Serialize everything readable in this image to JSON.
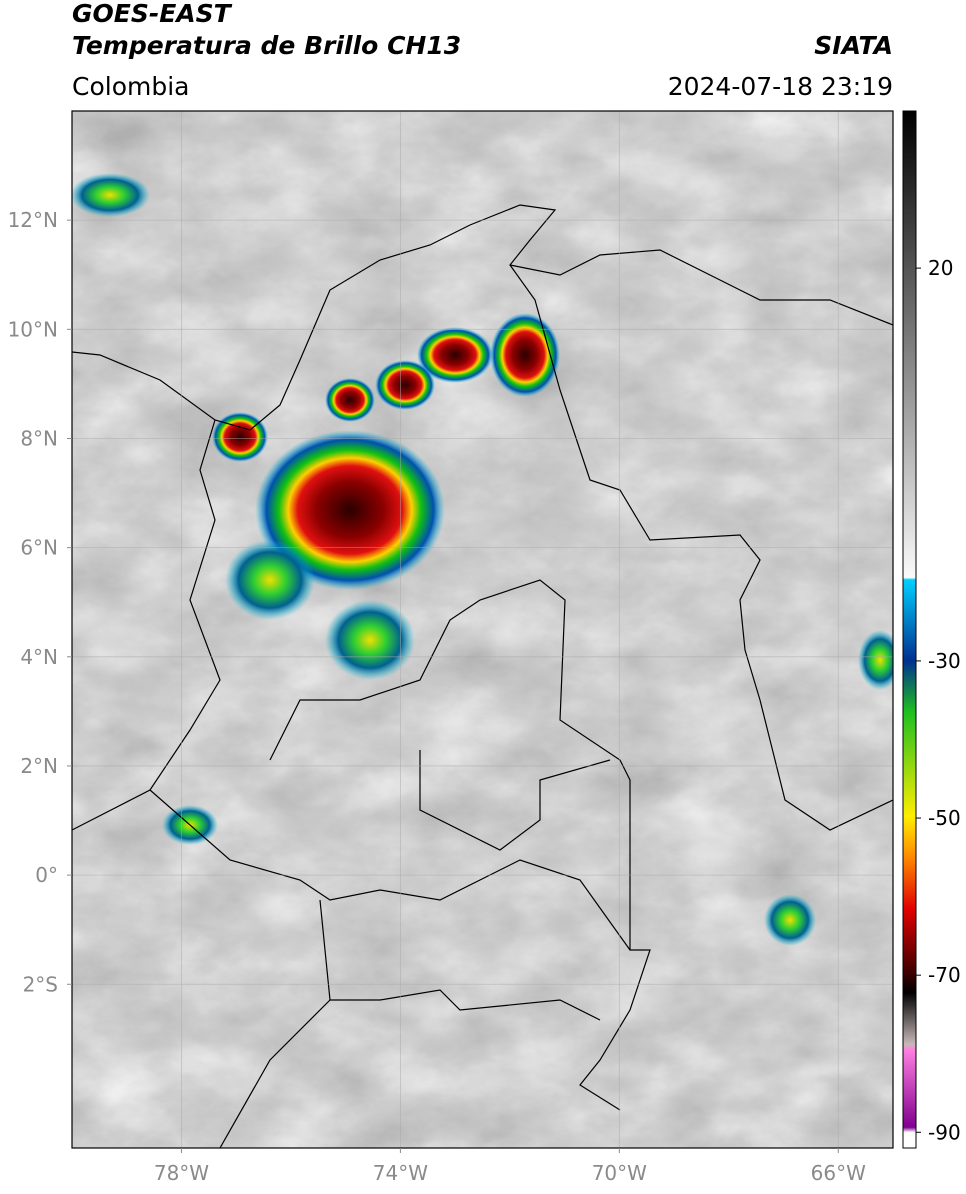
{
  "chart_data": {
    "type": "map",
    "title": "GOES-EAST",
    "subtitle": "Temperatura de Brillo CH13",
    "source": "SIATA",
    "region": "Colombia",
    "timestamp": "2024-07-18 23:19",
    "xlim": [
      -80,
      -65
    ],
    "ylim": [
      -5,
      14
    ],
    "xticks": [
      {
        "value": -78,
        "label": "78°W"
      },
      {
        "value": -74,
        "label": "74°W"
      },
      {
        "value": -70,
        "label": "70°W"
      },
      {
        "value": -66,
        "label": "66°W"
      }
    ],
    "yticks": [
      {
        "value": -2,
        "label": "2°S"
      },
      {
        "value": 0,
        "label": "0°"
      },
      {
        "value": 2,
        "label": "2°N"
      },
      {
        "value": 4,
        "label": "4°N"
      },
      {
        "value": 6,
        "label": "6°N"
      },
      {
        "value": 8,
        "label": "8°N"
      },
      {
        "value": 10,
        "label": "10°N"
      },
      {
        "value": 12,
        "label": "12°N"
      }
    ],
    "grid": true,
    "colorbar": {
      "lim": [
        -92,
        40
      ],
      "ticks": [
        20,
        -30,
        -50,
        -70,
        -90
      ]
    }
  }
}
